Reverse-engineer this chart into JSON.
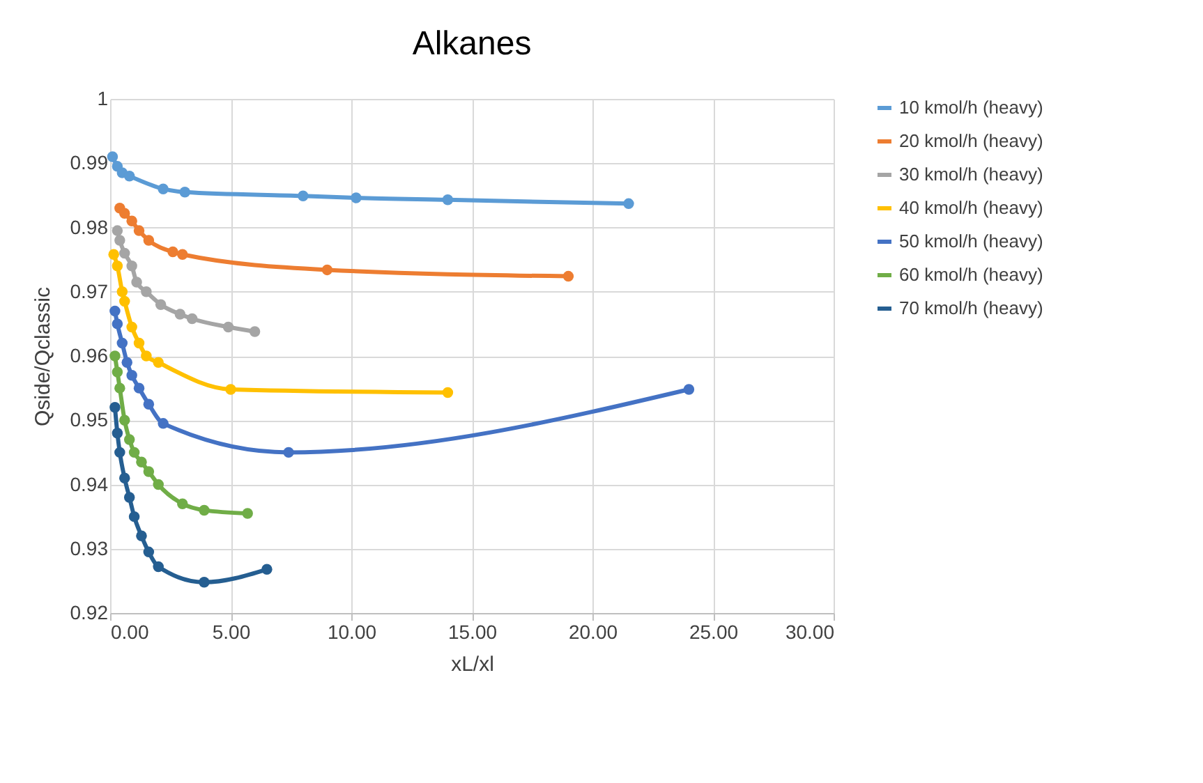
{
  "chart_data": {
    "type": "line",
    "title": "Alkanes",
    "xlabel": "xL/xl",
    "ylabel": "Qside/Qclassic",
    "xlim": [
      0,
      30
    ],
    "ylim": [
      0.92,
      1
    ],
    "xticks": [
      {
        "value": 0,
        "label": "0.00"
      },
      {
        "value": 5,
        "label": "5.00"
      },
      {
        "value": 10,
        "label": "10.00"
      },
      {
        "value": 15,
        "label": "15.00"
      },
      {
        "value": 20,
        "label": "20.00"
      },
      {
        "value": 25,
        "label": "25.00"
      },
      {
        "value": 30,
        "label": "30.00"
      }
    ],
    "yticks": [
      0.92,
      0.93,
      0.94,
      0.95,
      0.96,
      0.97,
      0.98,
      0.99,
      1
    ],
    "grid": true,
    "legend": "right",
    "marker": "circle",
    "series": [
      {
        "name": "10 kmol/h (heavy)",
        "color": "#5b9bd5",
        "x": [
          0.1,
          0.3,
          0.5,
          0.8,
          2.2,
          3.1,
          8,
          10.2,
          14,
          21.5
        ],
        "values": [
          0.991,
          0.9895,
          0.9885,
          0.988,
          0.986,
          0.9855,
          0.9849,
          0.9846,
          0.9843,
          0.9837
        ]
      },
      {
        "name": "20 kmol/h (heavy)",
        "color": "#ed7d31",
        "x": [
          0.4,
          0.6,
          0.9,
          1.2,
          1.6,
          2.6,
          3.0,
          9,
          19
        ],
        "values": [
          0.983,
          0.9822,
          0.981,
          0.9795,
          0.978,
          0.9762,
          0.9758,
          0.9734,
          0.9724
        ]
      },
      {
        "name": "30 kmol/h (heavy)",
        "color": "#a5a5a5",
        "x": [
          0.3,
          0.4,
          0.6,
          0.9,
          1.1,
          1.5,
          2.1,
          2.9,
          3.4,
          4.9,
          6
        ],
        "values": [
          0.9795,
          0.978,
          0.976,
          0.974,
          0.9715,
          0.97,
          0.968,
          0.9665,
          0.9658,
          0.9645,
          0.9638
        ]
      },
      {
        "name": "40 kmol/h (heavy)",
        "color": "#ffc000",
        "x": [
          0.15,
          0.3,
          0.5,
          0.6,
          0.9,
          1.2,
          1.5,
          2,
          5,
          14
        ],
        "values": [
          0.9758,
          0.974,
          0.97,
          0.9685,
          0.9645,
          0.962,
          0.96,
          0.959,
          0.9548,
          0.9543
        ]
      },
      {
        "name": "50 kmol/h (heavy)",
        "color": "#4472c4",
        "x": [
          0.2,
          0.3,
          0.5,
          0.7,
          0.9,
          1.2,
          1.6,
          2.2,
          7.4,
          24
        ],
        "values": [
          0.967,
          0.965,
          0.962,
          0.959,
          0.957,
          0.955,
          0.9525,
          0.9495,
          0.945,
          0.9548
        ]
      },
      {
        "name": "60 kmol/h (heavy)",
        "color": "#70ad47",
        "x": [
          0.2,
          0.3,
          0.4,
          0.6,
          0.8,
          1.0,
          1.3,
          1.6,
          2.0,
          3.0,
          3.9,
          5.7
        ],
        "values": [
          0.96,
          0.9575,
          0.955,
          0.95,
          0.947,
          0.945,
          0.9435,
          0.942,
          0.94,
          0.937,
          0.936,
          0.9355
        ]
      },
      {
        "name": "70 kmol/h (heavy)",
        "color": "#255e91",
        "x": [
          0.2,
          0.3,
          0.4,
          0.6,
          0.8,
          1.0,
          1.3,
          1.6,
          2.0,
          3.9,
          6.5
        ],
        "values": [
          0.952,
          0.948,
          0.945,
          0.941,
          0.938,
          0.935,
          0.932,
          0.9295,
          0.9272,
          0.9248,
          0.9268
        ]
      }
    ]
  }
}
